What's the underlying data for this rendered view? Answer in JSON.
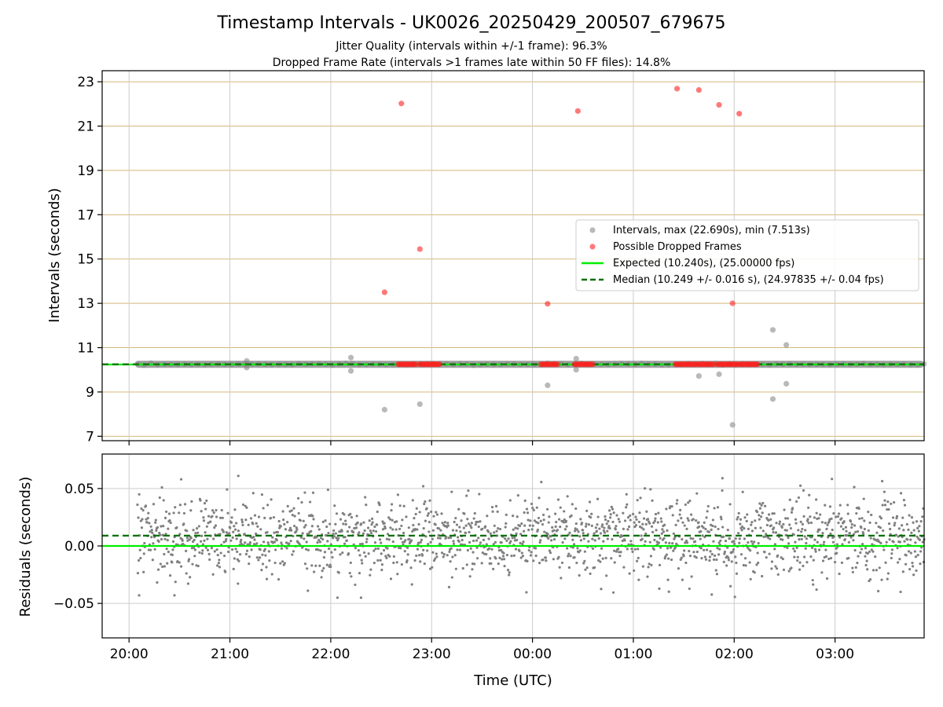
{
  "title": "Timestamp Intervals - UK0026_20250429_200507_679675",
  "subtitle_lines": [
    "Jitter Quality (intervals within +/-1 frame): 96.3%",
    "Dropped Frame Rate (intervals >1 frames late within 50 FF files): 14.8%"
  ],
  "colors": {
    "intervals": "#808080",
    "dropped": "#ff2020",
    "expected": "#00ee00",
    "median": "#007000",
    "gold_grid": "#d4b87a",
    "grid": "#cccccc"
  },
  "chart_data": [
    {
      "type": "scatter",
      "xlabel": "",
      "ylabel": "Intervals (seconds)",
      "x_axis": "time_utc",
      "xlim": [
        "19:44",
        "03:53"
      ],
      "ylim": [
        6.8,
        23.5
      ],
      "y_ticks": [
        7,
        9,
        11,
        13,
        15,
        17,
        19,
        21,
        23
      ],
      "grid": true,
      "legend_placement": "center-right",
      "legend": [
        "Intervals, max (22.690s), min (7.513s)",
        "Possible Dropped Frames",
        "Expected (10.240s), (25.00000 fps)",
        "Median (10.249 +/- 0.016 s), (24.97835 +/- 0.04 fps)"
      ],
      "reference_lines": {
        "expected": 10.24,
        "median": 10.249
      },
      "baseline_band": {
        "from": "20:05",
        "to": "03:53",
        "y": 10.249
      },
      "outlier_intervals": [
        {
          "x": "22:12",
          "y": 10.55
        },
        {
          "x": "22:12",
          "y": 9.95
        },
        {
          "x": "21:10",
          "y": 10.4
        },
        {
          "x": "21:10",
          "y": 10.1
        },
        {
          "x": "22:32",
          "y": 8.2
        },
        {
          "x": "22:53",
          "y": 8.45
        },
        {
          "x": "00:09",
          "y": 9.3
        },
        {
          "x": "00:26",
          "y": 10.5
        },
        {
          "x": "00:26",
          "y": 10.0
        },
        {
          "x": "01:39",
          "y": 9.72
        },
        {
          "x": "01:51",
          "y": 9.8
        },
        {
          "x": "01:59",
          "y": 7.513
        },
        {
          "x": "02:23",
          "y": 11.8
        },
        {
          "x": "02:23",
          "y": 8.68
        },
        {
          "x": "02:31",
          "y": 11.12
        },
        {
          "x": "02:31",
          "y": 9.37
        }
      ],
      "dropped_frames": [
        {
          "x": "22:32",
          "y": 13.5
        },
        {
          "x": "22:42",
          "y": 22.02
        },
        {
          "x": "22:53",
          "y": 15.45
        },
        {
          "x": "00:09",
          "y": 12.98
        },
        {
          "x": "00:27",
          "y": 21.68
        },
        {
          "x": "01:26",
          "y": 22.69
        },
        {
          "x": "01:39",
          "y": 22.63
        },
        {
          "x": "01:51",
          "y": 21.96
        },
        {
          "x": "02:03",
          "y": 21.56
        },
        {
          "x": "01:59",
          "y": 13.0
        }
      ],
      "dropped_clusters": [
        {
          "from": "22:40",
          "to": "22:51",
          "y": 10.249
        },
        {
          "from": "22:53",
          "to": "23:05",
          "y": 10.249
        },
        {
          "from": "00:05",
          "to": "00:15",
          "y": 10.249
        },
        {
          "from": "00:25",
          "to": "00:36",
          "y": 10.249
        },
        {
          "from": "01:25",
          "to": "01:37",
          "y": 10.249
        },
        {
          "from": "01:38",
          "to": "01:48",
          "y": 10.249
        },
        {
          "from": "01:50",
          "to": "02:02",
          "y": 10.249
        },
        {
          "from": "02:03",
          "to": "02:14",
          "y": 10.249
        }
      ]
    },
    {
      "type": "scatter",
      "xlabel": "Time (UTC)",
      "ylabel": "Residuals (seconds)",
      "x_axis": "time_utc",
      "xlim": [
        "19:44",
        "03:53"
      ],
      "ylim": [
        -0.08,
        0.08
      ],
      "y_ticks": [
        0.05,
        0.0,
        -0.05
      ],
      "y_tick_labels": [
        "0.05",
        "0.00",
        "−0.05"
      ],
      "x_ticks": [
        "20:00",
        "21:00",
        "22:00",
        "23:00",
        "00:00",
        "01:00",
        "02:00",
        "03:00"
      ],
      "grid": true,
      "reference_lines": {
        "expected": 0.0,
        "median": 0.009
      },
      "residual_spread": {
        "from": "20:05",
        "to": "03:53",
        "mean": 0.008,
        "std": 0.017,
        "min": -0.046,
        "max": 0.061
      },
      "residual_extremes": [
        {
          "x": "20:31",
          "y": 0.058
        },
        {
          "x": "21:05",
          "y": 0.061
        },
        {
          "x": "22:55",
          "y": 0.052
        },
        {
          "x": "01:53",
          "y": 0.059
        },
        {
          "x": "22:04",
          "y": -0.045
        },
        {
          "x": "22:18",
          "y": -0.045
        },
        {
          "x": "20:27",
          "y": -0.043
        },
        {
          "x": "20:06",
          "y": -0.043
        },
        {
          "x": "02:49",
          "y": -0.038
        },
        {
          "x": "03:39",
          "y": -0.04
        }
      ]
    }
  ]
}
